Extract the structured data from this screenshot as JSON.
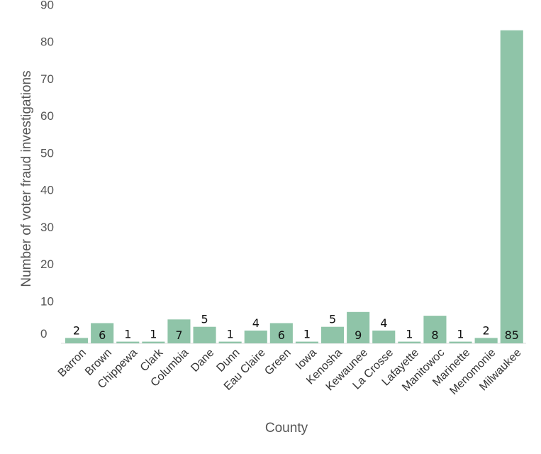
{
  "chart_data": {
    "type": "bar",
    "categories": [
      "Barron",
      "Brown",
      "Chippewa",
      "Clark",
      "Columbia",
      "Dane",
      "Dunn",
      "Eau Claire",
      "Green",
      "Iowa",
      "Kenosha",
      "Kewaunee",
      "La Crosse",
      "Lafayette",
      "Manitowoc",
      "Marinette",
      "Menomonie",
      "Milwaukee"
    ],
    "values": [
      2,
      6,
      1,
      1,
      7,
      5,
      1,
      4,
      6,
      1,
      5,
      9,
      4,
      1,
      8,
      1,
      2,
      85
    ],
    "title": "",
    "xlabel": "County",
    "ylabel": "Number of voter fraud investigations",
    "ylim": [
      0,
      90
    ],
    "yticks": [
      0,
      10,
      20,
      30,
      40,
      50,
      60,
      70,
      80,
      90
    ],
    "bar_color": "#8fc4a8",
    "grid": false,
    "legend": "none"
  }
}
